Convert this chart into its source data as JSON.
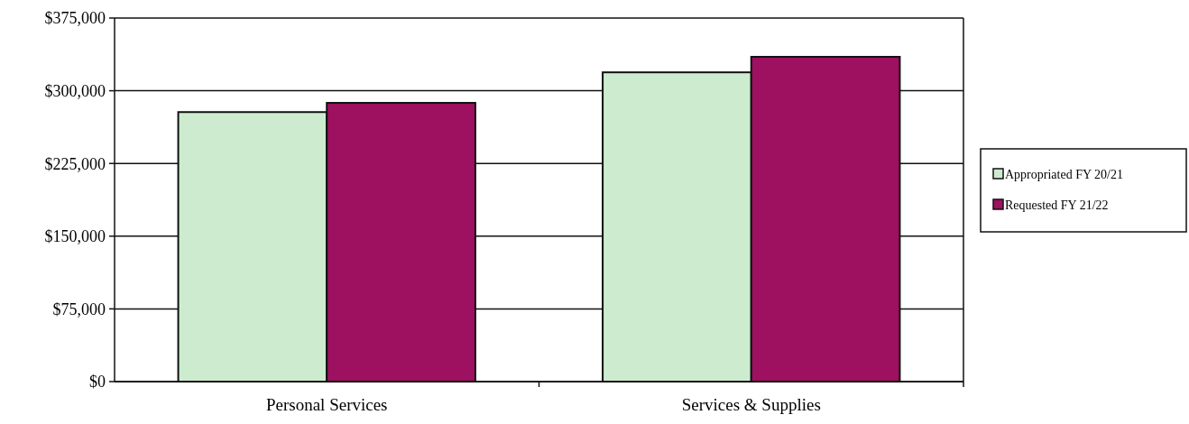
{
  "chart_data": {
    "type": "bar",
    "categories": [
      "Personal Services",
      "Services & Supplies"
    ],
    "series": [
      {
        "name": "Appropriated FY 20/21",
        "color": "#cdeccf",
        "values": [
          278000,
          319000
        ]
      },
      {
        "name": "Requested FY 21/22",
        "color": "#9e1060",
        "values": [
          287500,
          335000
        ]
      }
    ],
    "ylim": [
      0,
      375000
    ],
    "yticks": [
      {
        "value": 0,
        "label": "$0"
      },
      {
        "value": 75000,
        "label": "$75,000"
      },
      {
        "value": 150000,
        "label": "$150,000"
      },
      {
        "value": 225000,
        "label": "$225,000"
      },
      {
        "value": 300000,
        "label": "$300,000"
      },
      {
        "value": 375000,
        "label": "$375,000"
      }
    ],
    "grid": "y",
    "legend": "right"
  }
}
